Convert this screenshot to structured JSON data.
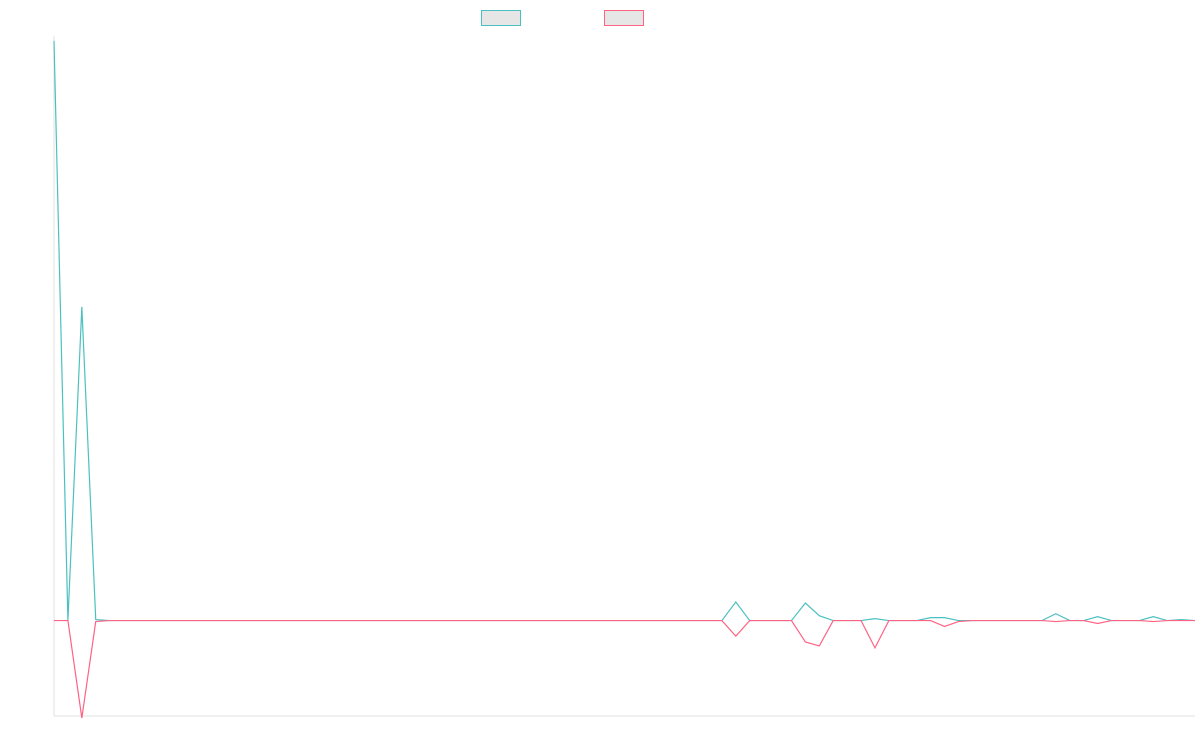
{
  "chart_data": {
    "type": "line",
    "title": "",
    "xlabel": "",
    "ylabel": "",
    "legend_placement": "top-center",
    "grid": false,
    "x": [
      0,
      1,
      2,
      3,
      4,
      5,
      6,
      7,
      8,
      9,
      10,
      11,
      12,
      13,
      14,
      15,
      16,
      17,
      18,
      19,
      20,
      21,
      22,
      23,
      24,
      25,
      26,
      27,
      28,
      29,
      30,
      31,
      32,
      33,
      34,
      35,
      36,
      37,
      38,
      39,
      40,
      41,
      42,
      43,
      44,
      45,
      46,
      47,
      48,
      49,
      50,
      51,
      52,
      53,
      54,
      55,
      56,
      57,
      58,
      59,
      60,
      61,
      62,
      63,
      64,
      65,
      66,
      67,
      68,
      69,
      70,
      71,
      72,
      73,
      74,
      75,
      76,
      77,
      78,
      79,
      80,
      81,
      82
    ],
    "xlim": [
      0,
      82
    ],
    "ylim": [
      -100,
      600
    ],
    "series": [
      {
        "name": "",
        "color": "#4bc0c0",
        "values": [
          595,
          0,
          322,
          1,
          0,
          0,
          0,
          0,
          0,
          0,
          0,
          0,
          0,
          0,
          0,
          0,
          0,
          0,
          0,
          0,
          0,
          0,
          0,
          0,
          0,
          0,
          0,
          0,
          0,
          0,
          0,
          0,
          0,
          0,
          0,
          0,
          0,
          0,
          0,
          0,
          0,
          0,
          0,
          0,
          0,
          0,
          0,
          0,
          0,
          19,
          0,
          0,
          0,
          0,
          18,
          5,
          0,
          0,
          0,
          2,
          0,
          0,
          0,
          3,
          3,
          0,
          0,
          0,
          0,
          0,
          0,
          0,
          7,
          0,
          0,
          4,
          0,
          0,
          0,
          4,
          0,
          1,
          0
        ]
      },
      {
        "name": "",
        "color": "#ff6384",
        "values": [
          0,
          0,
          -100,
          -1,
          0,
          0,
          0,
          0,
          0,
          0,
          0,
          0,
          0,
          0,
          0,
          0,
          0,
          0,
          0,
          0,
          0,
          0,
          0,
          0,
          0,
          0,
          0,
          0,
          0,
          0,
          0,
          0,
          0,
          0,
          0,
          0,
          0,
          0,
          0,
          0,
          0,
          0,
          0,
          0,
          0,
          0,
          0,
          0,
          0,
          -16,
          0,
          0,
          0,
          0,
          -22,
          -26,
          0,
          0,
          0,
          -28,
          0,
          0,
          0,
          0,
          -6,
          -1,
          0,
          0,
          0,
          0,
          0,
          0,
          -1,
          0,
          0,
          -3,
          0,
          0,
          0,
          -1,
          0,
          0,
          0
        ]
      }
    ]
  }
}
